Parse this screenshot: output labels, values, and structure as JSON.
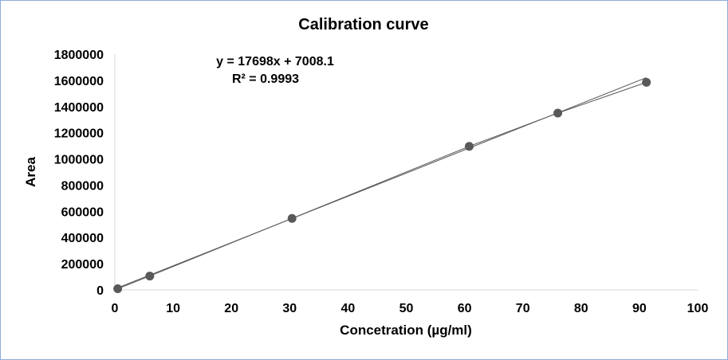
{
  "chart_data": {
    "type": "scatter",
    "title": "Calibration curve",
    "xlabel": "Concetration (µg/ml)",
    "ylabel": "Area",
    "xlim": [
      0,
      100
    ],
    "ylim": [
      0,
      1800000
    ],
    "xticks": [
      0,
      10,
      20,
      30,
      40,
      50,
      60,
      70,
      80,
      90,
      100
    ],
    "yticks": [
      0,
      200000,
      400000,
      600000,
      800000,
      1000000,
      1200000,
      1400000,
      1600000,
      1800000
    ],
    "grid": false,
    "series": [
      {
        "x": [
          0.5,
          6,
          30.4,
          60.8,
          76,
          91.2
        ],
        "y": [
          9000,
          106000,
          546000,
          1096000,
          1350000,
          1585000
        ],
        "color": "#595959"
      }
    ],
    "trendline": {
      "slope": 17698,
      "intercept": 7008.1,
      "equation": "y = 17698x + 7008.1",
      "r_squared": "R² = 0.9993",
      "x_range": [
        0.5,
        91.2
      ],
      "color": "#595959"
    }
  }
}
